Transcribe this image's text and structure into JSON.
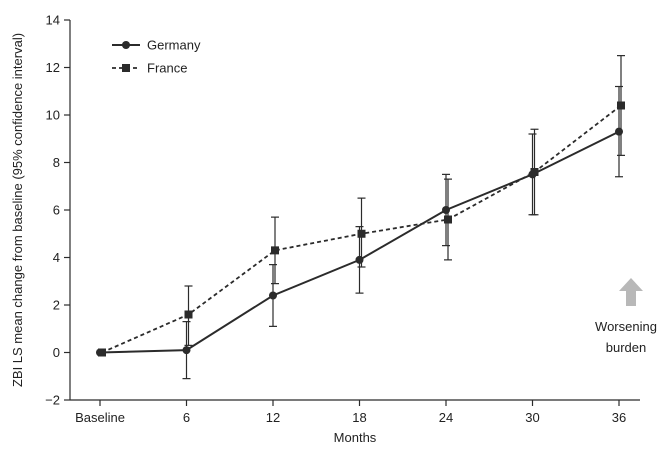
{
  "chart_data": {
    "type": "line",
    "xlabel": "Months",
    "ylabel": "ZBI LS mean change from baseline (95% confidence interval)",
    "categories": [
      "Baseline",
      "6",
      "12",
      "18",
      "24",
      "30",
      "36"
    ],
    "ylim": [
      -2,
      14
    ],
    "yticks": [
      -2,
      0,
      2,
      4,
      6,
      8,
      10,
      12,
      14
    ],
    "legend_position": "top-left",
    "grid": false,
    "series": [
      {
        "name": "Germany",
        "marker": "circle",
        "line_style": "solid",
        "color": "#2b2b2b",
        "values": [
          0,
          0.1,
          2.4,
          3.9,
          6.0,
          7.5,
          9.3
        ],
        "ci_low": [
          0,
          -1.1,
          1.1,
          2.5,
          4.5,
          5.8,
          7.4
        ],
        "ci_high": [
          0,
          1.3,
          3.7,
          5.3,
          7.5,
          9.2,
          11.2
        ]
      },
      {
        "name": "France",
        "marker": "square",
        "line_style": "dashed",
        "color": "#2b2b2b",
        "values": [
          0,
          1.6,
          4.3,
          5.0,
          5.6,
          7.6,
          10.4
        ],
        "ci_low": [
          0,
          0.3,
          2.9,
          3.6,
          3.9,
          5.8,
          8.3
        ],
        "ci_high": [
          0,
          2.8,
          5.7,
          6.5,
          7.3,
          9.4,
          12.5
        ]
      }
    ],
    "annotation": {
      "text_line1": "Worsening",
      "text_line2": "burden",
      "arrow_color": "#b8b8b8"
    }
  }
}
